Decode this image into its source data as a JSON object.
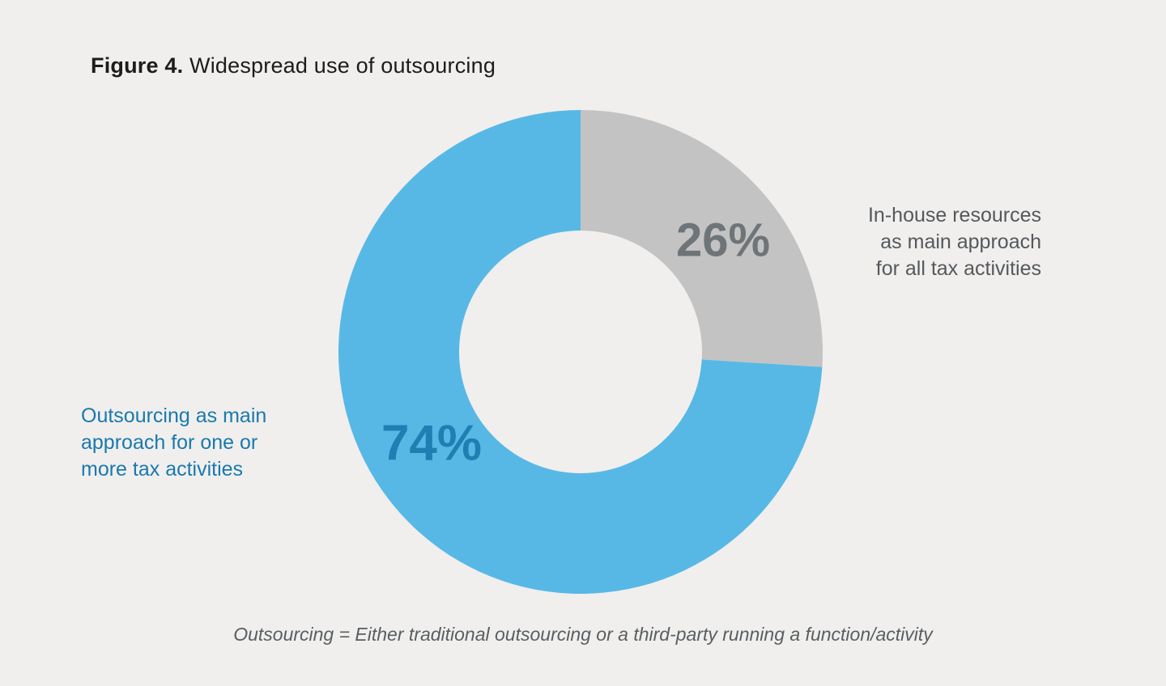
{
  "title": {
    "prefix": "Figure 4.",
    "rest": " Widespread use of outsourcing"
  },
  "chart_data": {
    "type": "pie",
    "subtype": "donut",
    "title": "Figure 4. Widespread use of outsourcing",
    "start_angle_deg": 0,
    "direction": "clockwise",
    "inner_radius_ratio": 0.5,
    "slices": [
      {
        "name": "inhouse-slice",
        "label": "In-house resources as main approach for all tax activities",
        "value": 26,
        "pct_label": "26%",
        "color": "#c3c3c3"
      },
      {
        "name": "outsourcing-slice",
        "label": "Outsourcing as main approach for one or more tax activities",
        "value": 74,
        "pct_label": "74%",
        "color": "#57b8e6"
      }
    ],
    "legend_position": "none",
    "footnote": "Outsourcing = Either traditional outsourcing or a third-party running a function/activity"
  },
  "annotations": {
    "inhouse": "In-house resources\nas main approach\nfor all tax activities",
    "outsourcing": "Outsourcing as main\napproach for one or\nmore tax activities"
  },
  "colors": {
    "background": "#f0efed",
    "inhouse_slice": "#c3c3c3",
    "outsourcing_slice": "#57b8e6",
    "inhouse_pct_text": "#6f7478",
    "outsourcing_pct_text": "#1f7fb2",
    "inhouse_annotation_text": "#55585c",
    "outsourcing_annotation_text": "#1a79ad",
    "footnote_text": "#5a5e61",
    "title_text": "#1c1c1c"
  }
}
